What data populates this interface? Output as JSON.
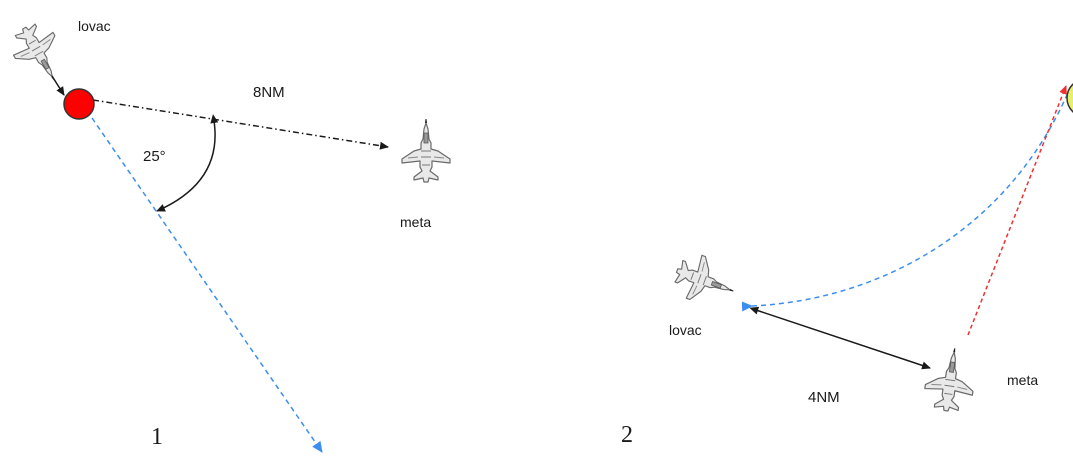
{
  "panel1": {
    "hunter_label": "lovac",
    "target_label": "meta",
    "distance_label": "8NM",
    "angle_label": "25°",
    "panel_number": "1",
    "launch_point_color": "#ff0000"
  },
  "panel2": {
    "hunter_label": "lovac",
    "target_label": "meta",
    "distance_label": "4NM",
    "panel_number": "2",
    "intercept_point_color": "#e6f06e"
  },
  "colors": {
    "blue_path": "#3b8ef0",
    "red_path": "#f03030",
    "black_line": "#1a1a1a"
  },
  "icons": [
    "fighter-jet-icon"
  ]
}
